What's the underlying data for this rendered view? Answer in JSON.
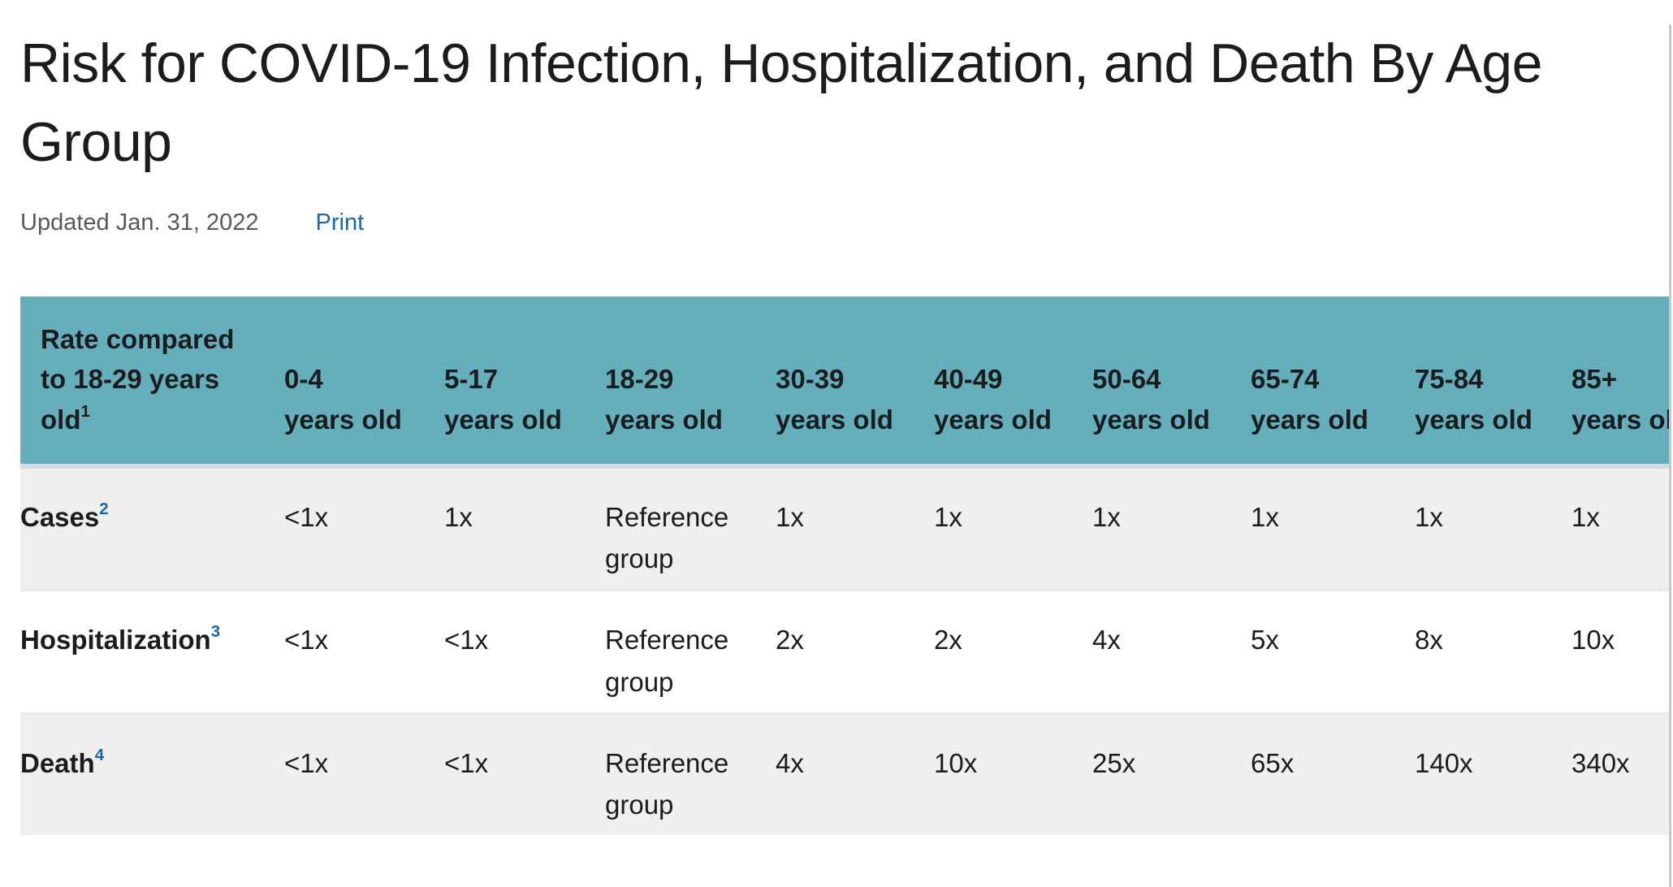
{
  "page": {
    "title": "Risk for COVID-19 Infection, Hospitalization, and Death By Age Group",
    "updated_label": "Updated Jan. 31, 2022",
    "print_label": "Print"
  },
  "table": {
    "corner": {
      "line1": "Rate compared",
      "line2": "to 18-29 years",
      "line3": "old",
      "sup": "1"
    },
    "columns": [
      {
        "range": "0-4",
        "suffix": "years old"
      },
      {
        "range": "5-17",
        "suffix": "years old"
      },
      {
        "range": "18-29",
        "suffix": "years old"
      },
      {
        "range": "30-39",
        "suffix": "years old"
      },
      {
        "range": "40-49",
        "suffix": "years old"
      },
      {
        "range": "50-64",
        "suffix": "years old"
      },
      {
        "range": "65-74",
        "suffix": "years old"
      },
      {
        "range": "75-84",
        "suffix": "years old"
      },
      {
        "range": "85+",
        "suffix": "years old"
      }
    ],
    "rows": [
      {
        "label": "Cases",
        "sup": "2",
        "values": [
          "<1x",
          "1x",
          "Reference group",
          "1x",
          "1x",
          "1x",
          "1x",
          "1x",
          "1x"
        ]
      },
      {
        "label": "Hospitalization",
        "sup": "3",
        "values": [
          "<1x",
          "<1x",
          "Reference group",
          "2x",
          "2x",
          "4x",
          "5x",
          "8x",
          "10x"
        ]
      },
      {
        "label": "Death",
        "sup": "4",
        "values": [
          "<1x",
          "<1x",
          "Reference group",
          "4x",
          "10x",
          "25x",
          "65x",
          "140x",
          "340x"
        ]
      }
    ]
  },
  "colors": {
    "header_teal": "#65afbc",
    "stripe_gray": "#efefef",
    "link_blue": "#1569b3",
    "updated_gray": "#58595b",
    "title_dark": "#1b1c1e",
    "scroll_gray": "#c9c9c9"
  }
}
